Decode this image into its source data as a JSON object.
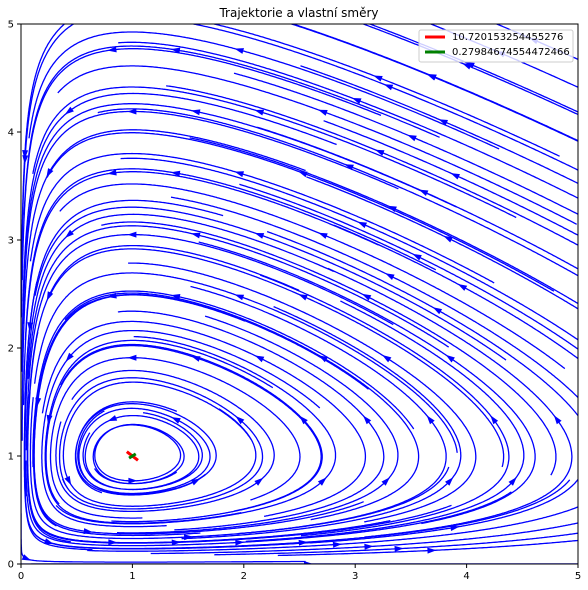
{
  "chart_data": {
    "type": "line",
    "title": "Trajektorie a vlastní směry",
    "xlabel": "",
    "ylabel": "",
    "xlim": [
      0,
      5
    ],
    "ylim": [
      0,
      5
    ],
    "xticks": [
      "0",
      "1",
      "2",
      "3",
      "4",
      "5"
    ],
    "yticks": [
      "0",
      "1",
      "2",
      "3",
      "4",
      "5"
    ],
    "grid": false,
    "legend_position": "top-right",
    "equilibrium": [
      1,
      1
    ],
    "series": [
      {
        "name": "10.720153254455276",
        "color": "#ff0000",
        "values": [
          [
            0.95,
            1.04
          ],
          [
            1.05,
            0.96
          ]
        ]
      },
      {
        "name": "0.27984674554472466",
        "color": "#008000",
        "values": [
          [
            0.97,
            0.98
          ],
          [
            1.03,
            1.02
          ]
        ]
      }
    ],
    "trajectory_color": "#0000ff"
  }
}
